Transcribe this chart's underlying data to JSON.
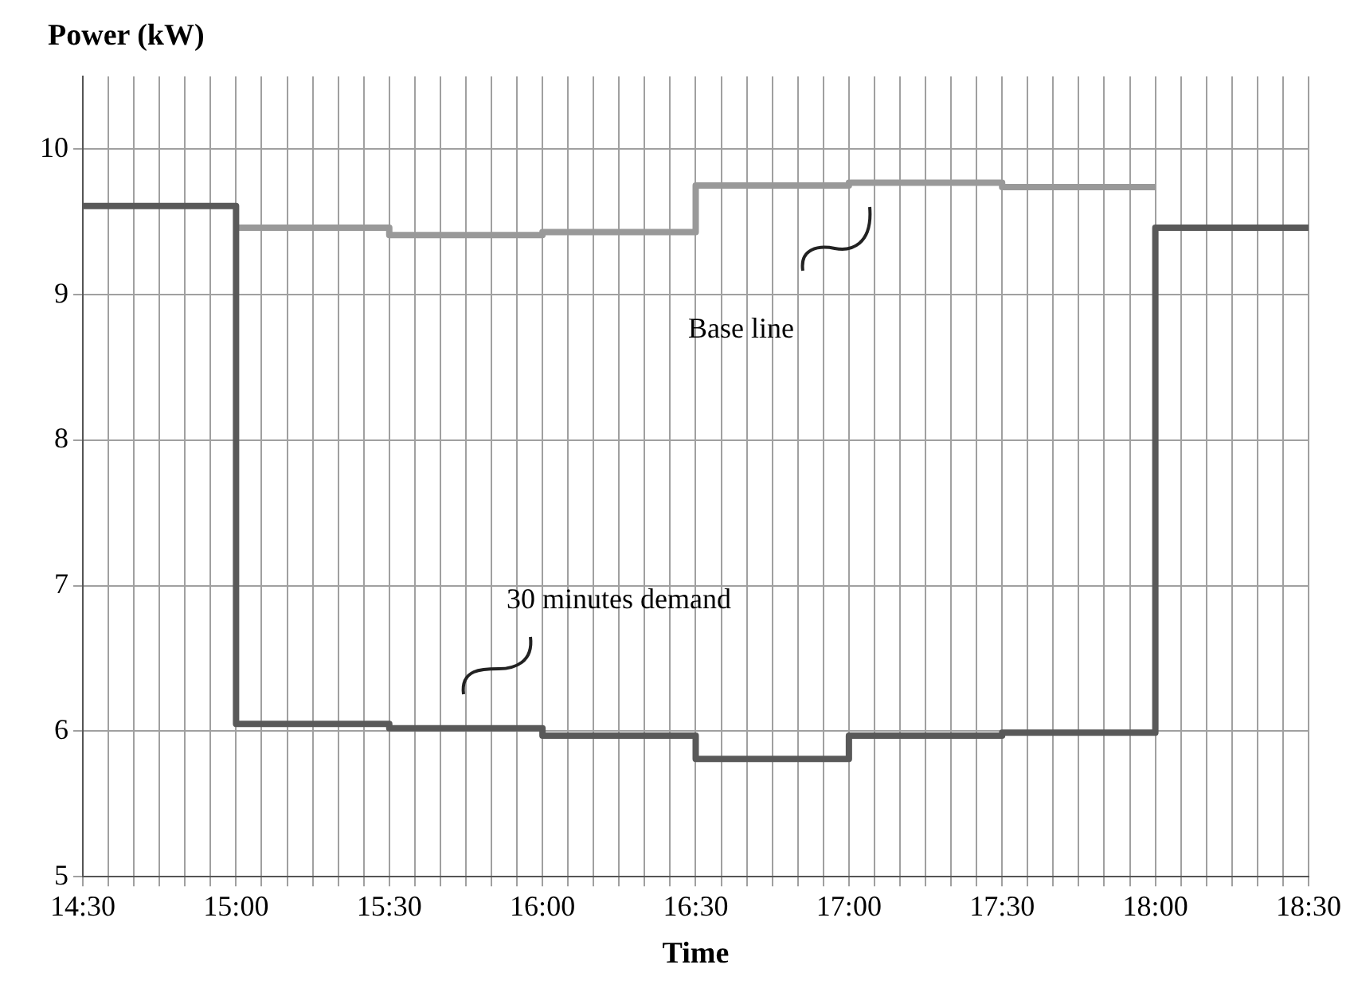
{
  "chart_data": {
    "type": "step",
    "ylabel": "Power (kW)",
    "xlabel": "Time",
    "xlim": [
      14.5,
      18.5
    ],
    "ylim": [
      5,
      10.5
    ],
    "yticks": [
      5,
      6,
      7,
      8,
      9,
      10
    ],
    "xticks": [
      {
        "value": 14.5,
        "label": "14:30"
      },
      {
        "value": 14.5833,
        "label": null
      },
      {
        "value": 14.6667,
        "label": null
      },
      {
        "value": 14.75,
        "label": null
      },
      {
        "value": 14.8333,
        "label": null
      },
      {
        "value": 14.9167,
        "label": null
      },
      {
        "value": 15,
        "label": "15:00"
      },
      {
        "value": 15.0833,
        "label": null
      },
      {
        "value": 15.1667,
        "label": null
      },
      {
        "value": 15.25,
        "label": null
      },
      {
        "value": 15.3333,
        "label": null
      },
      {
        "value": 15.4167,
        "label": null
      },
      {
        "value": 15.5,
        "label": "15:30"
      },
      {
        "value": 15.5833,
        "label": null
      },
      {
        "value": 15.6667,
        "label": null
      },
      {
        "value": 15.75,
        "label": null
      },
      {
        "value": 15.8333,
        "label": null
      },
      {
        "value": 15.9167,
        "label": null
      },
      {
        "value": 16,
        "label": "16:00"
      },
      {
        "value": 16.0833,
        "label": null
      },
      {
        "value": 16.1667,
        "label": null
      },
      {
        "value": 16.25,
        "label": null
      },
      {
        "value": 16.3333,
        "label": null
      },
      {
        "value": 16.4167,
        "label": null
      },
      {
        "value": 16.5,
        "label": "16:30"
      },
      {
        "value": 16.5833,
        "label": null
      },
      {
        "value": 16.6667,
        "label": null
      },
      {
        "value": 16.75,
        "label": null
      },
      {
        "value": 16.8333,
        "label": null
      },
      {
        "value": 16.9167,
        "label": null
      },
      {
        "value": 17,
        "label": "17:00"
      },
      {
        "value": 17.0833,
        "label": null
      },
      {
        "value": 17.1667,
        "label": null
      },
      {
        "value": 17.25,
        "label": null
      },
      {
        "value": 17.3333,
        "label": null
      },
      {
        "value": 17.4167,
        "label": null
      },
      {
        "value": 17.5,
        "label": "17:30"
      },
      {
        "value": 17.5833,
        "label": null
      },
      {
        "value": 17.6667,
        "label": null
      },
      {
        "value": 17.75,
        "label": null
      },
      {
        "value": 17.8333,
        "label": null
      },
      {
        "value": 17.9167,
        "label": null
      },
      {
        "value": 18,
        "label": "18:00"
      },
      {
        "value": 18.0833,
        "label": null
      },
      {
        "value": 18.1667,
        "label": null
      },
      {
        "value": 18.25,
        "label": null
      },
      {
        "value": 18.3333,
        "label": null
      },
      {
        "value": 18.4167,
        "label": null
      },
      {
        "value": 18.5,
        "label": "18:30"
      }
    ],
    "grid": true,
    "legend": false,
    "series": [
      {
        "color": "#595959",
        "x": [
          14.5,
          15,
          15.5,
          16,
          16.5,
          17,
          17.5,
          18,
          18.5
        ],
        "values": [
          9.61,
          6.05,
          6.02,
          5.97,
          5.81,
          5.97,
          5.99,
          9.46,
          9.46
        ]
      },
      {
        "color": "#999999",
        "x": [
          15,
          15.5,
          16,
          16.5,
          17,
          17.5,
          18
        ],
        "values": [
          9.46,
          9.41,
          9.43,
          9.75,
          9.77,
          9.74,
          9.74
        ]
      }
    ],
    "annotations": [
      "Base line",
      "30 minutes demand"
    ]
  }
}
